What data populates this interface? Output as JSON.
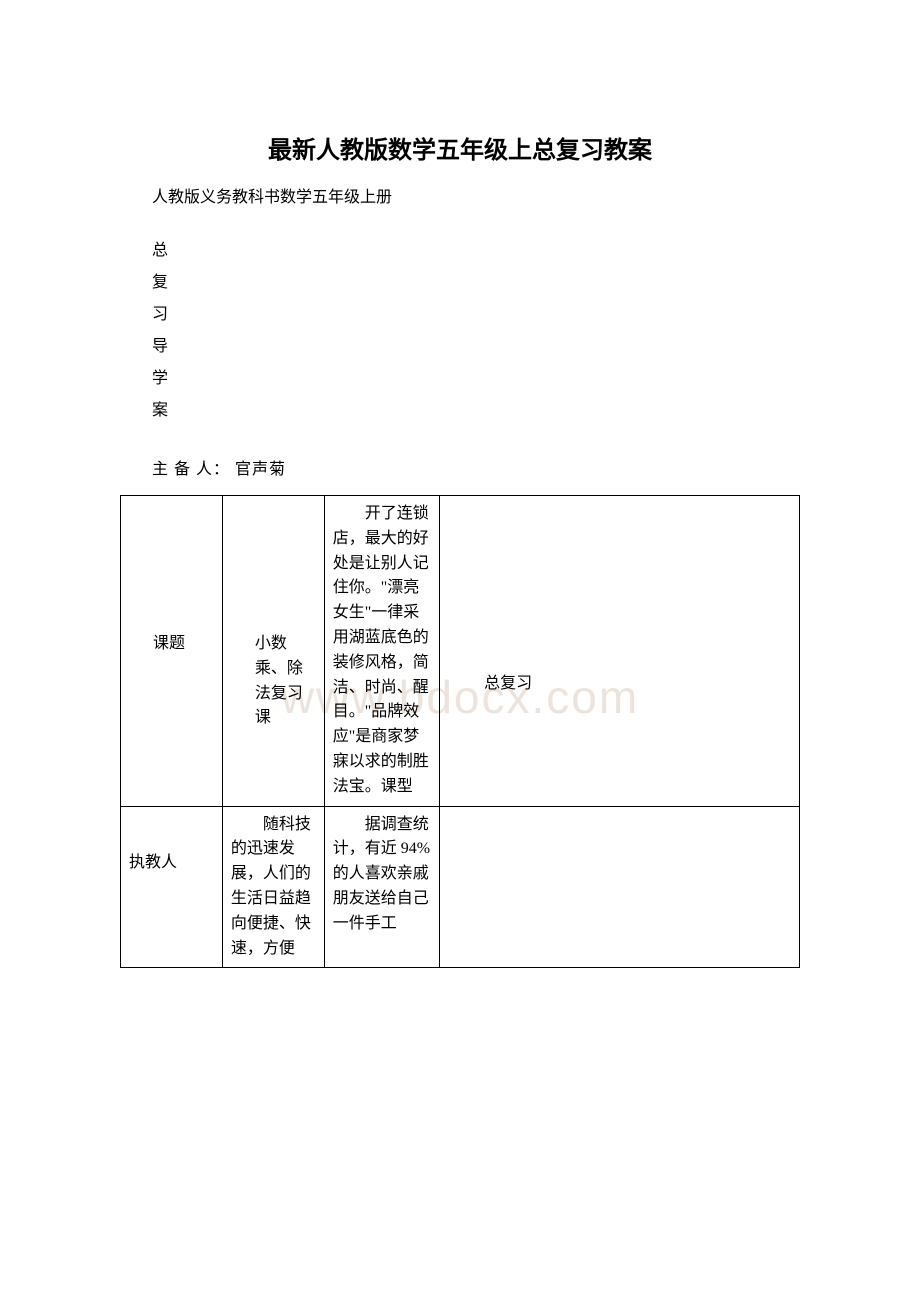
{
  "colors": {
    "background": "#ffffff",
    "text": "#000000",
    "border": "#000000",
    "watermark": "#ece4dc"
  },
  "typography": {
    "title_fontsize": 24,
    "title_weight": "bold",
    "body_fontsize": 16,
    "watermark_fontsize": 46,
    "line_height": 1.55
  },
  "title": "最新人教版数学五年级上总复习教案",
  "subtitle": "人教版义务教科书数学五年级上册",
  "vertical_chars": [
    "总",
    "复",
    "习",
    "导",
    "学",
    "案"
  ],
  "preparer_label": "主 备 人：",
  "preparer_name": " 官声菊",
  "watermark": "www.bdocx.com",
  "table": {
    "column_widths_pct": [
      15,
      15,
      17,
      53
    ],
    "rows": [
      {
        "c1": "课题",
        "c2": "小数乘、除法复习课",
        "c3": "开了连锁店，最大的好处是让别人记住你。\"漂亮女生\"一律采用湖蓝底色的装修风格，简洁、时尚、醒目。\"品牌效应\"是商家梦寐以求的制胜法宝。课型",
        "c4": "总复习"
      },
      {
        "c1": "执教人",
        "c2": "随科技的迅速发展，人们的生活日益趋向便捷、快速，方便",
        "c3": "据调查统计，有近 94%的人喜欢亲戚朋友送给自己一件手工",
        "c4": ""
      }
    ]
  }
}
